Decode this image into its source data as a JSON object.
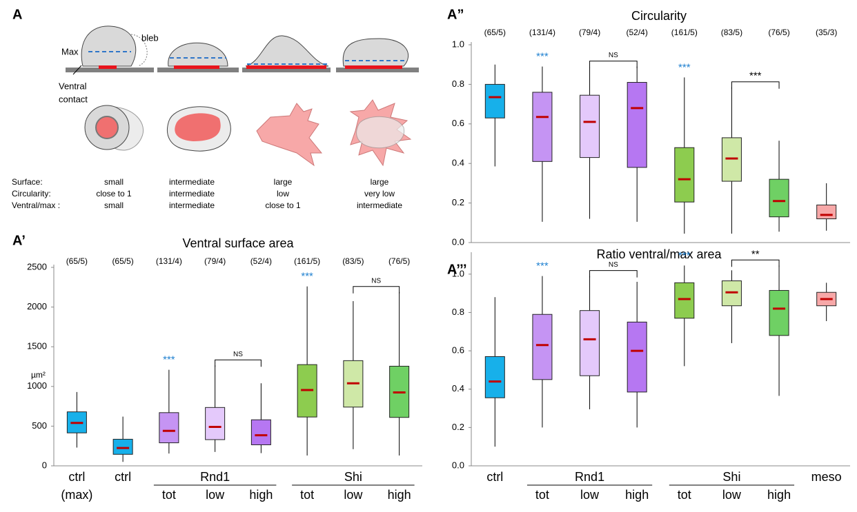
{
  "diagram": {
    "panel_label": "A",
    "max_label": "Max",
    "bleb_label": "bleb",
    "contact_label": [
      "Ventral",
      "contact"
    ],
    "rows": [
      {
        "label": "Surface:",
        "values": [
          "small",
          "intermediate",
          "large",
          "large"
        ]
      },
      {
        "label": "Circularity:",
        "values": [
          "close to 1",
          "intermediate",
          "low",
          "very low"
        ]
      },
      {
        "label": "Ventral/max :",
        "values": [
          "small",
          "intermediate",
          "close to 1",
          "intermediate"
        ]
      }
    ]
  },
  "chart_data": [
    {
      "type": "box",
      "panel_label": "A’",
      "title": "Ventral surface area",
      "ylabel": "µm²",
      "ylim": [
        0,
        2500
      ],
      "yticks": [
        0,
        500,
        1000,
        1500,
        2000,
        2500
      ],
      "n_labels": [
        "(65/5)",
        "(65/5)",
        "(131/4)",
        "(79/4)",
        "(52/4)",
        "(161/5)",
        "(83/5)",
        "(76/5)"
      ],
      "categories": [
        [
          "ctrl",
          "(max)"
        ],
        [
          "ctrl"
        ],
        [
          "tot"
        ],
        [
          "low"
        ],
        [
          "high"
        ],
        [
          "tot"
        ],
        [
          "low"
        ],
        [
          "high"
        ]
      ],
      "groups": [
        {
          "label": "Rnd1",
          "members": [
            2,
            3,
            4
          ]
        },
        {
          "label": "Shi",
          "members": [
            5,
            6,
            7
          ]
        }
      ],
      "boxes": [
        {
          "whislo": 230,
          "q1": 415,
          "med": 540,
          "q3": 680,
          "whishi": 930,
          "color": "#17b0ea"
        },
        {
          "whislo": 50,
          "q1": 145,
          "med": 225,
          "q3": 335,
          "whishi": 620,
          "color": "#17b0ea"
        },
        {
          "whislo": 155,
          "q1": 290,
          "med": 440,
          "q3": 670,
          "whishi": 1210,
          "color": "#c594f3"
        },
        {
          "whislo": 175,
          "q1": 330,
          "med": 490,
          "q3": 735,
          "whishi": 1265,
          "color": "#e4c9fb"
        },
        {
          "whislo": 160,
          "q1": 265,
          "med": 385,
          "q3": 580,
          "whishi": 1040,
          "color": "#b677f2"
        },
        {
          "whislo": 130,
          "q1": 615,
          "med": 955,
          "q3": 1275,
          "whishi": 2260,
          "color": "#8dcc4f"
        },
        {
          "whislo": 210,
          "q1": 740,
          "med": 1040,
          "q3": 1325,
          "whishi": 2075,
          "color": "#cfe8a7"
        },
        {
          "whislo": 130,
          "q1": 610,
          "med": 925,
          "q3": 1255,
          "whishi": 2190,
          "color": "#6fd064"
        }
      ],
      "stars": [
        {
          "text": "***",
          "category": 2,
          "color": "#1f80d0"
        },
        {
          "text": "***",
          "category": 5,
          "color": "#1f80d0"
        }
      ],
      "brackets": [
        {
          "text": "NS",
          "from": 3,
          "to": 4
        },
        {
          "text": "NS",
          "from": 6,
          "to": 7
        }
      ]
    },
    {
      "type": "box",
      "panel_label": "A”",
      "title": "Circularity",
      "ylim": [
        0,
        1
      ],
      "yticks": [
        {
          "value": 0,
          "label": "0.0"
        },
        0.2,
        0.4,
        0.6,
        0.8,
        {
          "value": 1,
          "label": "1.0"
        }
      ],
      "n_labels": [
        "(65/5)",
        "(131/4)",
        "(79/4)",
        "(52/4)",
        "(161/5)",
        "(83/5)",
        "(76/5)",
        "(35/3)"
      ],
      "boxes": [
        {
          "whislo": 0.385,
          "q1": 0.63,
          "med": 0.735,
          "q3": 0.8,
          "whishi": 0.9,
          "color": "#17b0ea"
        },
        {
          "whislo": 0.105,
          "q1": 0.41,
          "med": 0.635,
          "q3": 0.76,
          "whishi": 0.89,
          "color": "#c594f3"
        },
        {
          "whislo": 0.12,
          "q1": 0.43,
          "med": 0.61,
          "q3": 0.745,
          "whishi": 0.885,
          "color": "#e4c9fb"
        },
        {
          "whislo": 0.105,
          "q1": 0.38,
          "med": 0.68,
          "q3": 0.81,
          "whishi": 0.89,
          "color": "#b677f2"
        },
        {
          "whislo": 0.045,
          "q1": 0.205,
          "med": 0.32,
          "q3": 0.48,
          "whishi": 0.835,
          "color": "#8dcc4f"
        },
        {
          "whislo": 0.045,
          "q1": 0.31,
          "med": 0.425,
          "q3": 0.53,
          "whishi": 0.785,
          "color": "#cfe8a7"
        },
        {
          "whislo": 0.055,
          "q1": 0.13,
          "med": 0.21,
          "q3": 0.32,
          "whishi": 0.515,
          "color": "#6fd064"
        },
        {
          "whislo": 0.06,
          "q1": 0.12,
          "med": 0.14,
          "q3": 0.19,
          "whishi": 0.3,
          "color": "#f7a8a8"
        }
      ],
      "stars": [
        {
          "text": "***",
          "category": 1,
          "color": "#1f80d0"
        },
        {
          "text": "***",
          "category": 4,
          "color": "#1f80d0"
        }
      ],
      "brackets": [
        {
          "text": "NS",
          "from": 2,
          "to": 3
        },
        {
          "text": "***",
          "from": 5,
          "to": 6
        }
      ]
    },
    {
      "type": "box",
      "panel_label": "A’’’",
      "title": "Ratio ventral/max area",
      "ylim": [
        0,
        1.1
      ],
      "yticks": [
        {
          "value": 0,
          "label": "0.0"
        },
        0.2,
        0.4,
        0.6,
        0.8,
        {
          "value": 1,
          "label": "1.0"
        }
      ],
      "categories": [
        [
          "ctrl"
        ],
        [
          "tot"
        ],
        [
          "low"
        ],
        [
          "high"
        ],
        [
          "tot"
        ],
        [
          "low"
        ],
        [
          "high"
        ],
        [
          "meso"
        ]
      ],
      "groups": [
        {
          "label": "Rnd1",
          "members": [
            1,
            2,
            3
          ]
        },
        {
          "label": "Shi",
          "members": [
            4,
            5,
            6
          ]
        }
      ],
      "boxes": [
        {
          "whislo": 0.1,
          "q1": 0.355,
          "med": 0.44,
          "q3": 0.57,
          "whishi": 0.88,
          "color": "#17b0ea"
        },
        {
          "whislo": 0.2,
          "q1": 0.45,
          "med": 0.63,
          "q3": 0.79,
          "whishi": 0.99,
          "color": "#c594f3"
        },
        {
          "whislo": 0.295,
          "q1": 0.47,
          "med": 0.66,
          "q3": 0.81,
          "whishi": 0.99,
          "color": "#e4c9fb"
        },
        {
          "whislo": 0.2,
          "q1": 0.385,
          "med": 0.6,
          "q3": 0.75,
          "whishi": 0.96,
          "color": "#b677f2"
        },
        {
          "whislo": 0.52,
          "q1": 0.77,
          "med": 0.87,
          "q3": 0.955,
          "whishi": 1.045,
          "color": "#8dcc4f"
        },
        {
          "whislo": 0.64,
          "q1": 0.835,
          "med": 0.905,
          "q3": 0.965,
          "whishi": 1.02,
          "color": "#cfe8a7"
        },
        {
          "whislo": 0.365,
          "q1": 0.68,
          "med": 0.82,
          "q3": 0.915,
          "whishi": 1.045,
          "color": "#6fd064"
        },
        {
          "whislo": 0.755,
          "q1": 0.835,
          "med": 0.87,
          "q3": 0.905,
          "whishi": 0.955,
          "color": "#f7a8a8"
        }
      ],
      "stars": [
        {
          "text": "***",
          "category": 1,
          "color": "#1f80d0"
        },
        {
          "text": "***",
          "category": 4,
          "color": "#1f80d0"
        }
      ],
      "brackets": [
        {
          "text": "NS",
          "from": 2,
          "to": 3
        },
        {
          "text": "**",
          "from": 5,
          "to": 6
        }
      ]
    }
  ]
}
